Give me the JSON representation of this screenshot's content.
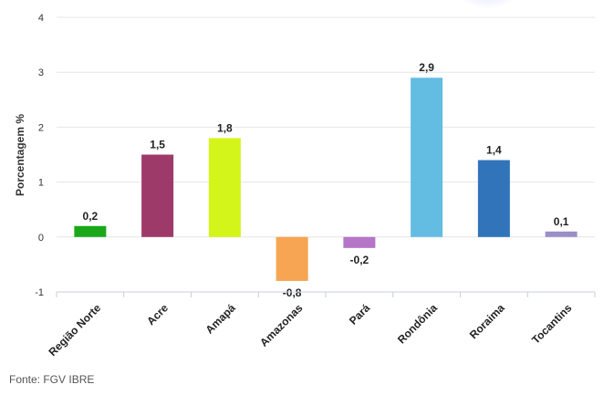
{
  "chart_data": {
    "type": "bar",
    "categories": [
      "Região Norte",
      "Acre",
      "Amapá",
      "Amazonas",
      "Pará",
      "Rondônia",
      "Roraima",
      "Tocantins"
    ],
    "values": [
      0.2,
      1.5,
      1.8,
      -0.8,
      -0.2,
      2.9,
      1.4,
      0.1
    ],
    "value_labels": [
      "0,2",
      "1,5",
      "1,8",
      "-0,8",
      "-0,2",
      "2,9",
      "1,4",
      "0,1"
    ],
    "colors": [
      "#1aa81a",
      "#9e3a6a",
      "#d4f51a",
      "#f7a552",
      "#b576c8",
      "#63bde3",
      "#3174ba",
      "#9a8fc6"
    ],
    "ylabel": "Porcentagem %",
    "xlabel": "",
    "ylim": [
      -1,
      4
    ],
    "yticks": [
      -1,
      0,
      1,
      2,
      3,
      4
    ],
    "grid": true
  },
  "source": "Fonte: FGV IBRE"
}
